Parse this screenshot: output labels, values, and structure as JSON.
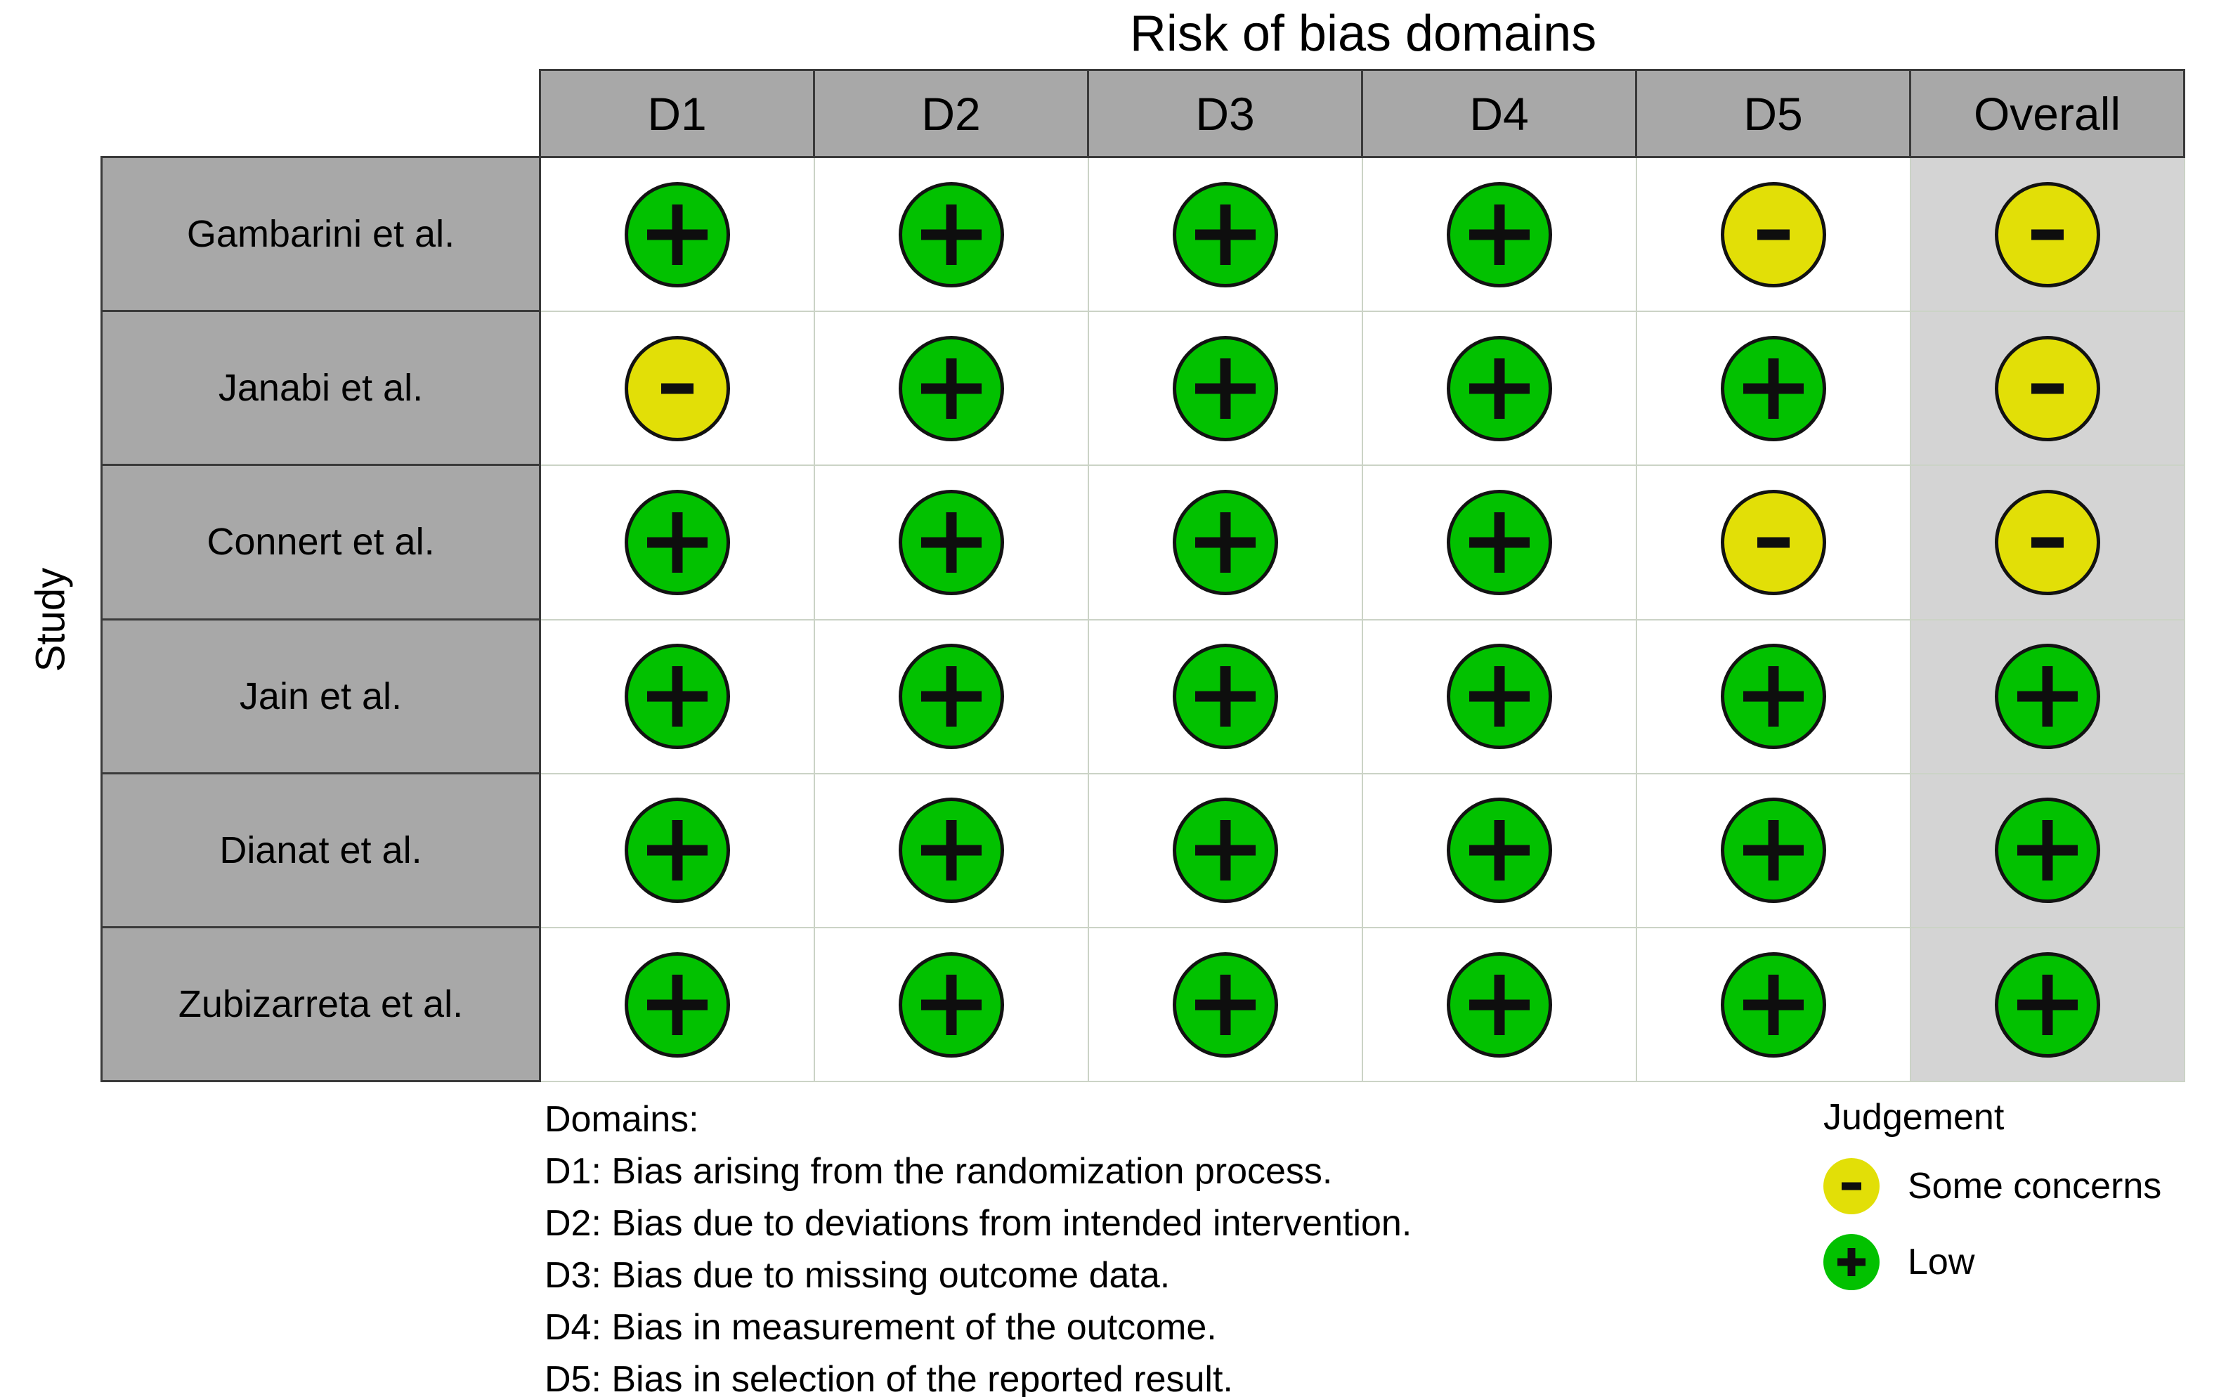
{
  "chart_data": {
    "type": "table",
    "variant": "risk-of-bias-traffic-light-plot",
    "title": "Risk of bias domains",
    "ylabel": "Study",
    "columns": [
      "D1",
      "D2",
      "D3",
      "D4",
      "D5",
      "Overall"
    ],
    "rows": [
      {
        "study": "Gambarini et al.",
        "judgements": [
          "low",
          "low",
          "low",
          "low",
          "some_concerns",
          "some_concerns"
        ]
      },
      {
        "study": "Janabi et al.",
        "judgements": [
          "some_concerns",
          "low",
          "low",
          "low",
          "low",
          "some_concerns"
        ]
      },
      {
        "study": "Connert et al.",
        "judgements": [
          "low",
          "low",
          "low",
          "low",
          "some_concerns",
          "some_concerns"
        ]
      },
      {
        "study": "Jain et al.",
        "judgements": [
          "low",
          "low",
          "low",
          "low",
          "low",
          "low"
        ]
      },
      {
        "study": "Dianat et al.",
        "judgements": [
          "low",
          "low",
          "low",
          "low",
          "low",
          "low"
        ]
      },
      {
        "study": "Zubizarreta et al.",
        "judgements": [
          "low",
          "low",
          "low",
          "low",
          "low",
          "low"
        ]
      }
    ],
    "judgement_styles": {
      "low": {
        "label": "Low",
        "symbol": "+",
        "color": "#02C100"
      },
      "some_concerns": {
        "label": "Some concerns",
        "symbol": "-",
        "color": "#E2DF07"
      }
    },
    "legend": {
      "title": "Judgement",
      "items": [
        {
          "judgement": "some_concerns",
          "label": "Some concerns"
        },
        {
          "judgement": "low",
          "label": "Low"
        }
      ]
    },
    "footnote": {
      "heading": "Domains:",
      "items": [
        "D1: Bias arising from the randomization process.",
        "D2: Bias due to deviations from intended intervention.",
        "D3: Bias due to missing outcome data.",
        "D4: Bias in measurement of the outcome.",
        "D5: Bias in selection of the reported result."
      ]
    },
    "layout": {
      "grid": "on",
      "legend_position": "bottom-right",
      "overall_column_shaded": true
    }
  },
  "colors": {
    "header_fill": "#A8A8A8",
    "overall_column_fill": "#D4D4D4",
    "table_border_dark": "#3A3A3A",
    "cell_border_light": "#CBD3C6",
    "low": "#02C100",
    "some_concerns": "#E2DF07",
    "background": "#FFFFFF"
  }
}
